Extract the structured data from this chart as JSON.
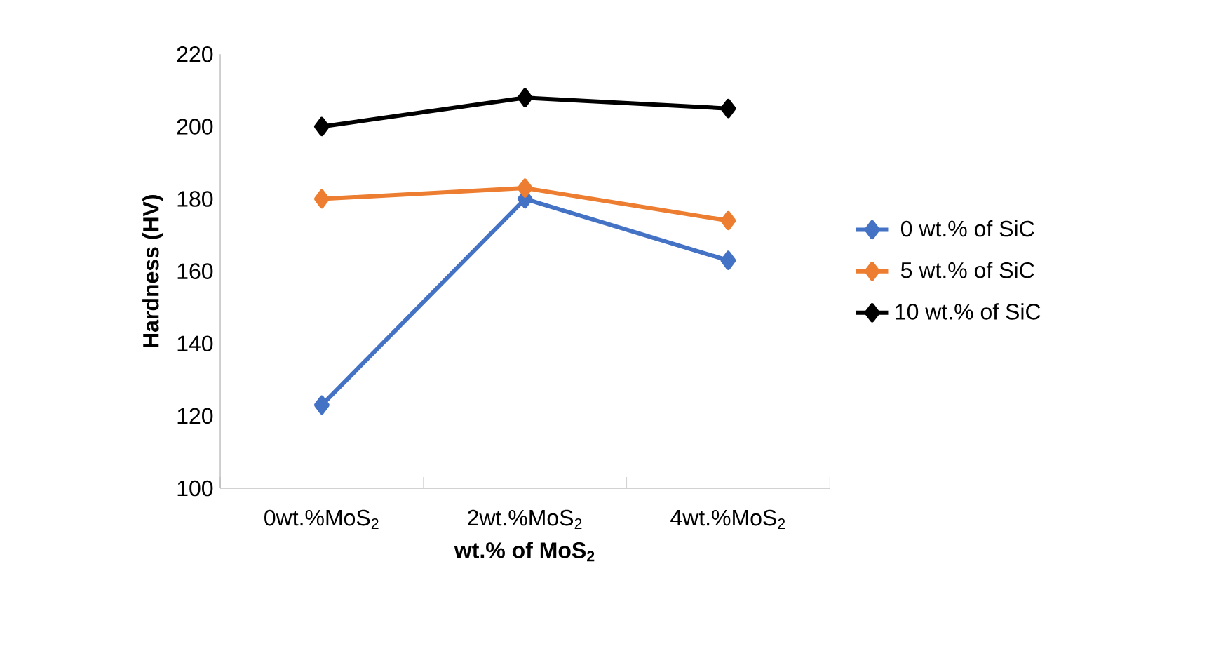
{
  "chart_data": {
    "type": "line",
    "xlabel": "wt.% of MoS$_{2}$",
    "ylabel": "Hardness (HV)",
    "categories": [
      "0wt.%MoS$_{2}$",
      "2wt.%MoS$_{2}$",
      "4wt.%MoS$_{2}$"
    ],
    "series": [
      {
        "name": "0 wt.% of SiC",
        "color": "#4472c4",
        "values": [
          123,
          180,
          163
        ]
      },
      {
        "name": "5 wt.% of SiC",
        "color": "#ed7d31",
        "values": [
          180,
          183,
          174
        ]
      },
      {
        "name": "10 wt.% of SiC",
        "color": "#000000",
        "values": [
          200,
          208,
          205
        ]
      }
    ],
    "ylim": [
      100,
      220
    ],
    "yticks": [
      100,
      120,
      140,
      160,
      180,
      200,
      220
    ],
    "grid": false,
    "legend": "right",
    "marker": "diamond",
    "line_style": "solid"
  }
}
